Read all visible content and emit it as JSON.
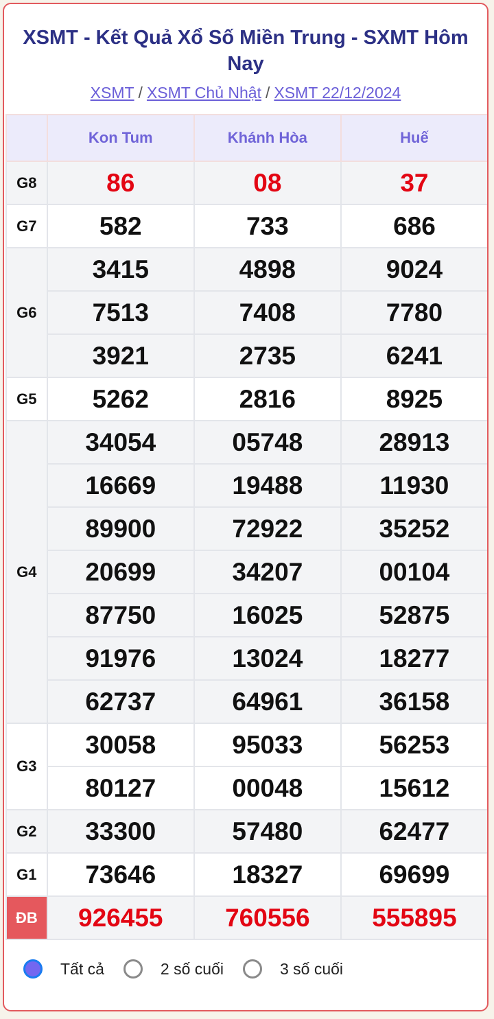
{
  "header": {
    "title": "XSMT - Kết Quả Xổ Số Miền Trung - SXMT Hôm Nay"
  },
  "breadcrumb": [
    {
      "label": "XSMT"
    },
    {
      "label": "XSMT Chủ Nhật"
    },
    {
      "label": "XSMT 22/12/2024"
    }
  ],
  "breadcrumb_separator": "/",
  "table": {
    "provinces": [
      "Kon Tum",
      "Khánh Hòa",
      "Huế"
    ],
    "prizes": [
      {
        "label": "G8",
        "highlight": true,
        "rows": [
          [
            "86",
            "08",
            "37"
          ]
        ]
      },
      {
        "label": "G7",
        "rows": [
          [
            "582",
            "733",
            "686"
          ]
        ]
      },
      {
        "label": "G6",
        "rows": [
          [
            "3415",
            "4898",
            "9024"
          ],
          [
            "7513",
            "7408",
            "7780"
          ],
          [
            "3921",
            "2735",
            "6241"
          ]
        ]
      },
      {
        "label": "G5",
        "rows": [
          [
            "5262",
            "2816",
            "8925"
          ]
        ]
      },
      {
        "label": "G4",
        "rows": [
          [
            "34054",
            "05748",
            "28913"
          ],
          [
            "16669",
            "19488",
            "11930"
          ],
          [
            "89900",
            "72922",
            "35252"
          ],
          [
            "20699",
            "34207",
            "00104"
          ],
          [
            "87750",
            "16025",
            "52875"
          ],
          [
            "91976",
            "13024",
            "18277"
          ],
          [
            "62737",
            "64961",
            "36158"
          ]
        ]
      },
      {
        "label": "G3",
        "rows": [
          [
            "30058",
            "95033",
            "56253"
          ],
          [
            "80127",
            "00048",
            "15612"
          ]
        ]
      },
      {
        "label": "G2",
        "rows": [
          [
            "33300",
            "57480",
            "62477"
          ]
        ]
      },
      {
        "label": "G1",
        "rows": [
          [
            "73646",
            "18327",
            "69699"
          ]
        ]
      },
      {
        "label": "ĐB",
        "highlight": true,
        "special": true,
        "rows": [
          [
            "926455",
            "760556",
            "555895"
          ]
        ]
      }
    ]
  },
  "filter": {
    "options": [
      {
        "label": "Tất cả",
        "selected": true
      },
      {
        "label": "2 số cuối",
        "selected": false
      },
      {
        "label": "3 số cuối",
        "selected": false
      }
    ]
  },
  "colors": {
    "title": "#2c3085",
    "accent": "#7064d8",
    "prize_red": "#e30613",
    "special_bg": "#e5585d",
    "border": "#e25a5e"
  }
}
